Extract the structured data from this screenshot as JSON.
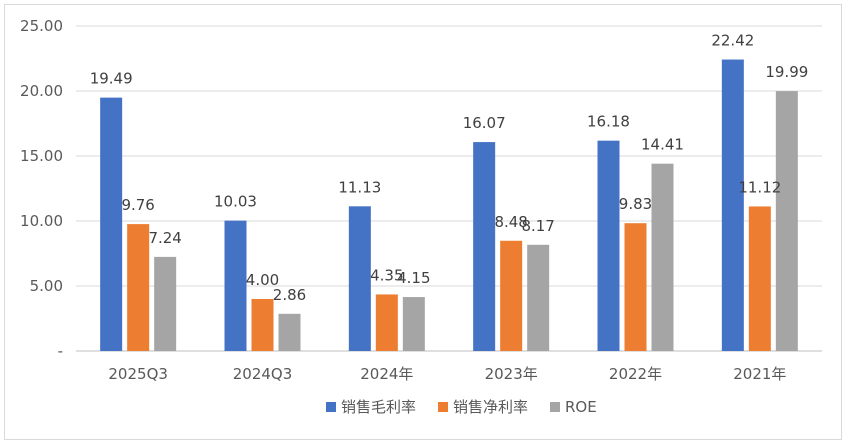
{
  "chart_data": {
    "type": "bar",
    "title": "",
    "xlabel": "",
    "ylabel": "",
    "ylim": [
      0,
      25
    ],
    "yticks": [
      {
        "value": 0,
        "label": "-"
      },
      {
        "value": 5,
        "label": "5.00"
      },
      {
        "value": 10,
        "label": "10.00"
      },
      {
        "value": 15,
        "label": "15.00"
      },
      {
        "value": 20,
        "label": "20.00"
      },
      {
        "value": 25,
        "label": "25.00"
      }
    ],
    "grid": true,
    "legend_position": "bottom",
    "categories": [
      "2025Q3",
      "2024Q3",
      "2024年",
      "2023年",
      "2022年",
      "2021年"
    ],
    "series": [
      {
        "name": "销售毛利率",
        "color": "#4472C4",
        "values": [
          19.49,
          10.03,
          11.13,
          16.07,
          16.18,
          22.42
        ],
        "labels": [
          "19.49",
          "10.03",
          "11.13",
          "16.07",
          "16.18",
          "22.42"
        ]
      },
      {
        "name": "销售净利率",
        "color": "#ED7D31",
        "values": [
          9.76,
          4.0,
          4.35,
          8.48,
          9.83,
          11.12
        ],
        "labels": [
          "9.76",
          "4.00",
          "4.35",
          "8.48",
          "9.83",
          "11.12"
        ]
      },
      {
        "name": "ROE",
        "color": "#A5A5A5",
        "values": [
          7.24,
          2.86,
          4.15,
          8.17,
          14.41,
          19.99
        ],
        "labels": [
          "7.24",
          "2.86",
          "4.15",
          "8.17",
          "14.41",
          "19.99"
        ]
      }
    ]
  }
}
